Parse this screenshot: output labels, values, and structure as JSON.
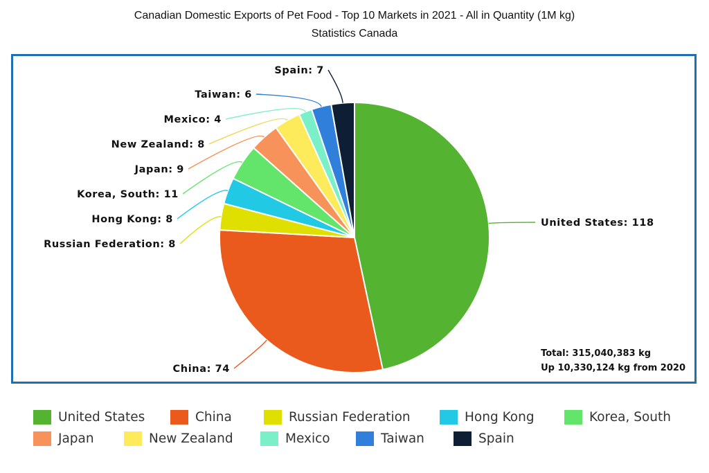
{
  "header": {
    "title": "Canadian Domestic Exports of Pet Food - Top 10 Markets in 2021 - All in Quantity (1M kg)",
    "subtitle": "Statistics Canada"
  },
  "summary": {
    "total": "Total:  315,040,383 kg",
    "change": "Up 10,330,124 kg from 2020"
  },
  "chart_data": {
    "type": "pie",
    "title": "Canadian Domestic Exports of Pet Food - Top 10 Markets in 2021 - All in Quantity (1M kg)",
    "subtitle": "Statistics Canada",
    "unit": "1M kg",
    "legend_position": "bottom",
    "slices": [
      {
        "label": "United States",
        "display": "United States: 118",
        "value": 118,
        "color": "#55b332"
      },
      {
        "label": "China",
        "display": "China: 74",
        "value": 74,
        "color": "#ea5a1d"
      },
      {
        "label": "Russian Federation",
        "display": "Russian Federation: 8",
        "value": 8,
        "color": "#dfe000"
      },
      {
        "label": "Hong Kong",
        "display": "Hong Kong: 8",
        "value": 8,
        "color": "#22c9e4"
      },
      {
        "label": "Korea, South",
        "display": "Korea, South: 11",
        "value": 11,
        "color": "#63e46a"
      },
      {
        "label": "Japan",
        "display": "Japan: 9",
        "value": 9,
        "color": "#f7935a"
      },
      {
        "label": "New Zealand",
        "display": "New Zealand: 8",
        "value": 8,
        "color": "#fdeb5c"
      },
      {
        "label": "Mexico",
        "display": "Mexico: 4",
        "value": 4,
        "color": "#7bf0c8"
      },
      {
        "label": "Taiwan",
        "display": "Taiwan: 6",
        "value": 6,
        "color": "#2f7fdb"
      },
      {
        "label": "Spain",
        "display": "Spain: 7",
        "value": 7,
        "color": "#0e1f35"
      }
    ]
  }
}
